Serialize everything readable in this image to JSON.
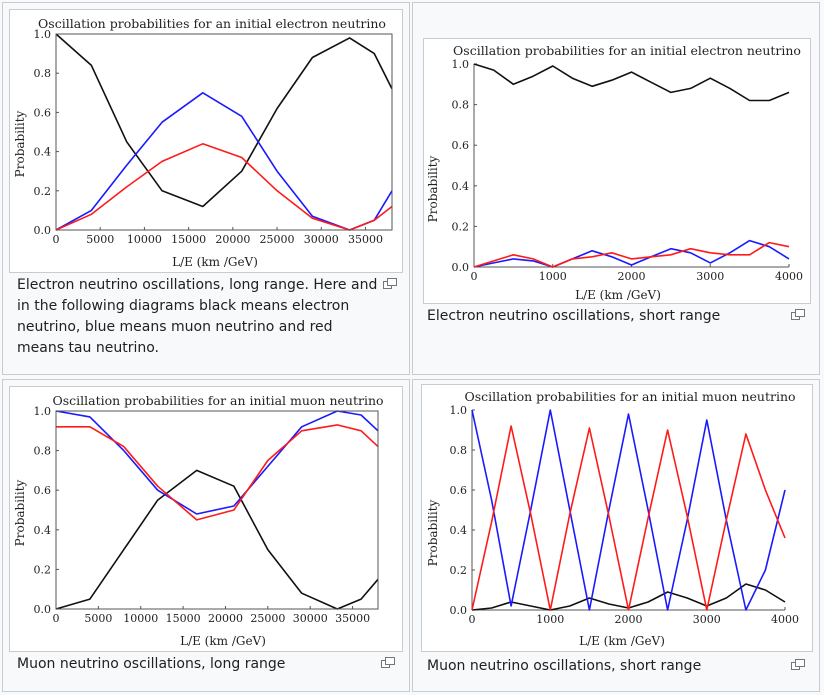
{
  "colors": {
    "electron": "#111111",
    "muon": "#1a1aff",
    "tau": "#ff1a1a"
  },
  "gallery": [
    {
      "caption": "Electron neutrino oscillations, long range. Here and in the following diagrams black means electron neutrino, blue means muon neutrino and red means tau neutrino.",
      "chart": {
        "title": "Oscillation probabilities for an initial electron neutrino",
        "xlabel": "L/E (km /GeV)",
        "ylabel": "Probability",
        "xticks": [
          "0",
          "5000",
          "10000",
          "15000",
          "20000",
          "25000",
          "30000",
          "35000"
        ],
        "yticks": [
          "0.0",
          "0.2",
          "0.4",
          "0.6",
          "0.8",
          "1.0"
        ]
      }
    },
    {
      "caption": "Electron neutrino oscillations, short range",
      "chart": {
        "title": "Oscillation probabilities for an initial electron neutrino",
        "xlabel": "L/E (km /GeV)",
        "ylabel": "Probability",
        "xticks": [
          "0",
          "1000",
          "2000",
          "3000",
          "4000"
        ],
        "yticks": [
          "0.0",
          "0.2",
          "0.4",
          "0.6",
          "0.8",
          "1.0"
        ]
      }
    },
    {
      "caption": "Muon neutrino oscillations, long range",
      "chart": {
        "title": "Oscillation probabilities for an initial muon neutrino",
        "xlabel": "L/E (km /GeV)",
        "ylabel": "Probability",
        "xticks": [
          "0",
          "5000",
          "10000",
          "15000",
          "20000",
          "25000",
          "30000",
          "35000"
        ],
        "yticks": [
          "0.0",
          "0.2",
          "0.4",
          "0.6",
          "0.8",
          "1.0"
        ]
      }
    },
    {
      "caption": "Muon neutrino oscillations, short range",
      "chart": {
        "title": "Oscillation probabilities for an initial muon neutrino",
        "xlabel": "L/E (km /GeV)",
        "ylabel": "Probability",
        "xticks": [
          "0",
          "1000",
          "2000",
          "3000",
          "4000"
        ],
        "yticks": [
          "0.0",
          "0.2",
          "0.4",
          "0.6",
          "0.8",
          "1.0"
        ]
      }
    }
  ],
  "chart_data": [
    {
      "type": "line",
      "xlim": [
        0,
        38000
      ],
      "ylim": [
        0,
        1
      ],
      "grid": false,
      "series": [
        {
          "color": "#111111",
          "x": [
            0,
            4000,
            8000,
            12000,
            16600,
            21000,
            25000,
            29000,
            33200,
            36000,
            38000
          ],
          "y": [
            1.0,
            0.84,
            0.45,
            0.2,
            0.12,
            0.3,
            0.62,
            0.88,
            0.98,
            0.9,
            0.72
          ]
        },
        {
          "color": "#1a1aff",
          "x": [
            0,
            4000,
            8000,
            12000,
            16600,
            21000,
            25000,
            29000,
            33200,
            36000,
            38000
          ],
          "y": [
            0.0,
            0.1,
            0.33,
            0.55,
            0.7,
            0.58,
            0.3,
            0.07,
            0.0,
            0.05,
            0.2
          ]
        },
        {
          "color": "#ff1a1a",
          "x": [
            0,
            4000,
            8000,
            12000,
            16600,
            21000,
            25000,
            29000,
            33200,
            36000,
            38000
          ],
          "y": [
            0.0,
            0.08,
            0.22,
            0.35,
            0.44,
            0.37,
            0.2,
            0.06,
            0.0,
            0.05,
            0.12
          ]
        }
      ]
    },
    {
      "type": "line",
      "xlim": [
        0,
        4000
      ],
      "ylim": [
        0,
        1
      ],
      "grid": false,
      "series": [
        {
          "color": "#111111",
          "x": [
            0,
            250,
            500,
            750,
            1000,
            1250,
            1500,
            1750,
            2000,
            2250,
            2500,
            2750,
            3000,
            3250,
            3500,
            3750,
            4000
          ],
          "y": [
            1.0,
            0.97,
            0.9,
            0.94,
            0.99,
            0.93,
            0.89,
            0.92,
            0.96,
            0.91,
            0.86,
            0.88,
            0.93,
            0.88,
            0.82,
            0.82,
            0.86
          ]
        },
        {
          "color": "#1a1aff",
          "x": [
            0,
            250,
            500,
            750,
            1000,
            1250,
            1500,
            1750,
            2000,
            2250,
            2500,
            2750,
            3000,
            3250,
            3500,
            3750,
            4000
          ],
          "y": [
            0.0,
            0.02,
            0.04,
            0.03,
            0.0,
            0.04,
            0.08,
            0.05,
            0.01,
            0.05,
            0.09,
            0.07,
            0.02,
            0.07,
            0.13,
            0.1,
            0.04
          ]
        },
        {
          "color": "#ff1a1a",
          "x": [
            0,
            250,
            500,
            750,
            1000,
            1250,
            1500,
            1750,
            2000,
            2250,
            2500,
            2750,
            3000,
            3250,
            3500,
            3750,
            4000
          ],
          "y": [
            0.0,
            0.03,
            0.06,
            0.04,
            0.0,
            0.04,
            0.05,
            0.07,
            0.04,
            0.05,
            0.06,
            0.09,
            0.07,
            0.06,
            0.06,
            0.12,
            0.1
          ]
        }
      ]
    },
    {
      "type": "line",
      "xlim": [
        0,
        38000
      ],
      "ylim": [
        0,
        1
      ],
      "grid": false,
      "series": [
        {
          "color": "#111111",
          "x": [
            0,
            4000,
            8000,
            12000,
            16600,
            21000,
            25000,
            29000,
            33200,
            36000,
            38000
          ],
          "y": [
            0.0,
            0.05,
            0.3,
            0.55,
            0.7,
            0.62,
            0.3,
            0.08,
            0.0,
            0.05,
            0.15
          ]
        },
        {
          "color": "#1a1aff",
          "x": [
            0,
            4000,
            8000,
            12000,
            16600,
            21000,
            25000,
            29000,
            33200,
            36000,
            38000
          ],
          "y": [
            1.0,
            0.97,
            0.8,
            0.6,
            0.48,
            0.52,
            0.72,
            0.92,
            1.0,
            0.98,
            0.9
          ]
        },
        {
          "color": "#ff1a1a",
          "x": [
            0,
            4000,
            8000,
            12000,
            16600,
            21000,
            25000,
            29000,
            33200,
            36000,
            38000
          ],
          "y": [
            0.92,
            0.92,
            0.82,
            0.62,
            0.45,
            0.5,
            0.75,
            0.9,
            0.93,
            0.9,
            0.82
          ]
        }
      ]
    },
    {
      "type": "line",
      "xlim": [
        0,
        4000
      ],
      "ylim": [
        0,
        1
      ],
      "grid": false,
      "series": [
        {
          "color": "#111111",
          "x": [
            0,
            250,
            500,
            750,
            1000,
            1250,
            1500,
            1750,
            2000,
            2250,
            2500,
            2750,
            3000,
            3250,
            3500,
            3750,
            4000
          ],
          "y": [
            0.0,
            0.01,
            0.04,
            0.02,
            0.0,
            0.02,
            0.06,
            0.03,
            0.01,
            0.04,
            0.09,
            0.06,
            0.02,
            0.06,
            0.13,
            0.1,
            0.04
          ]
        },
        {
          "color": "#1a1aff",
          "x": [
            0,
            250,
            500,
            750,
            1000,
            1250,
            1500,
            1750,
            2000,
            2250,
            2500,
            2750,
            3000,
            3250,
            3500,
            3750,
            4000
          ],
          "y": [
            1.0,
            0.55,
            0.02,
            0.5,
            1.0,
            0.5,
            0.0,
            0.5,
            0.98,
            0.5,
            0.0,
            0.45,
            0.95,
            0.45,
            0.0,
            0.2,
            0.6
          ]
        },
        {
          "color": "#ff1a1a",
          "x": [
            0,
            250,
            500,
            750,
            1000,
            1250,
            1500,
            1750,
            2000,
            2250,
            2500,
            2750,
            3000,
            3250,
            3500,
            3750,
            4000
          ],
          "y": [
            0.0,
            0.44,
            0.92,
            0.48,
            0.0,
            0.48,
            0.91,
            0.47,
            0.0,
            0.46,
            0.9,
            0.47,
            0.0,
            0.45,
            0.88,
            0.6,
            0.36
          ]
        }
      ]
    }
  ]
}
